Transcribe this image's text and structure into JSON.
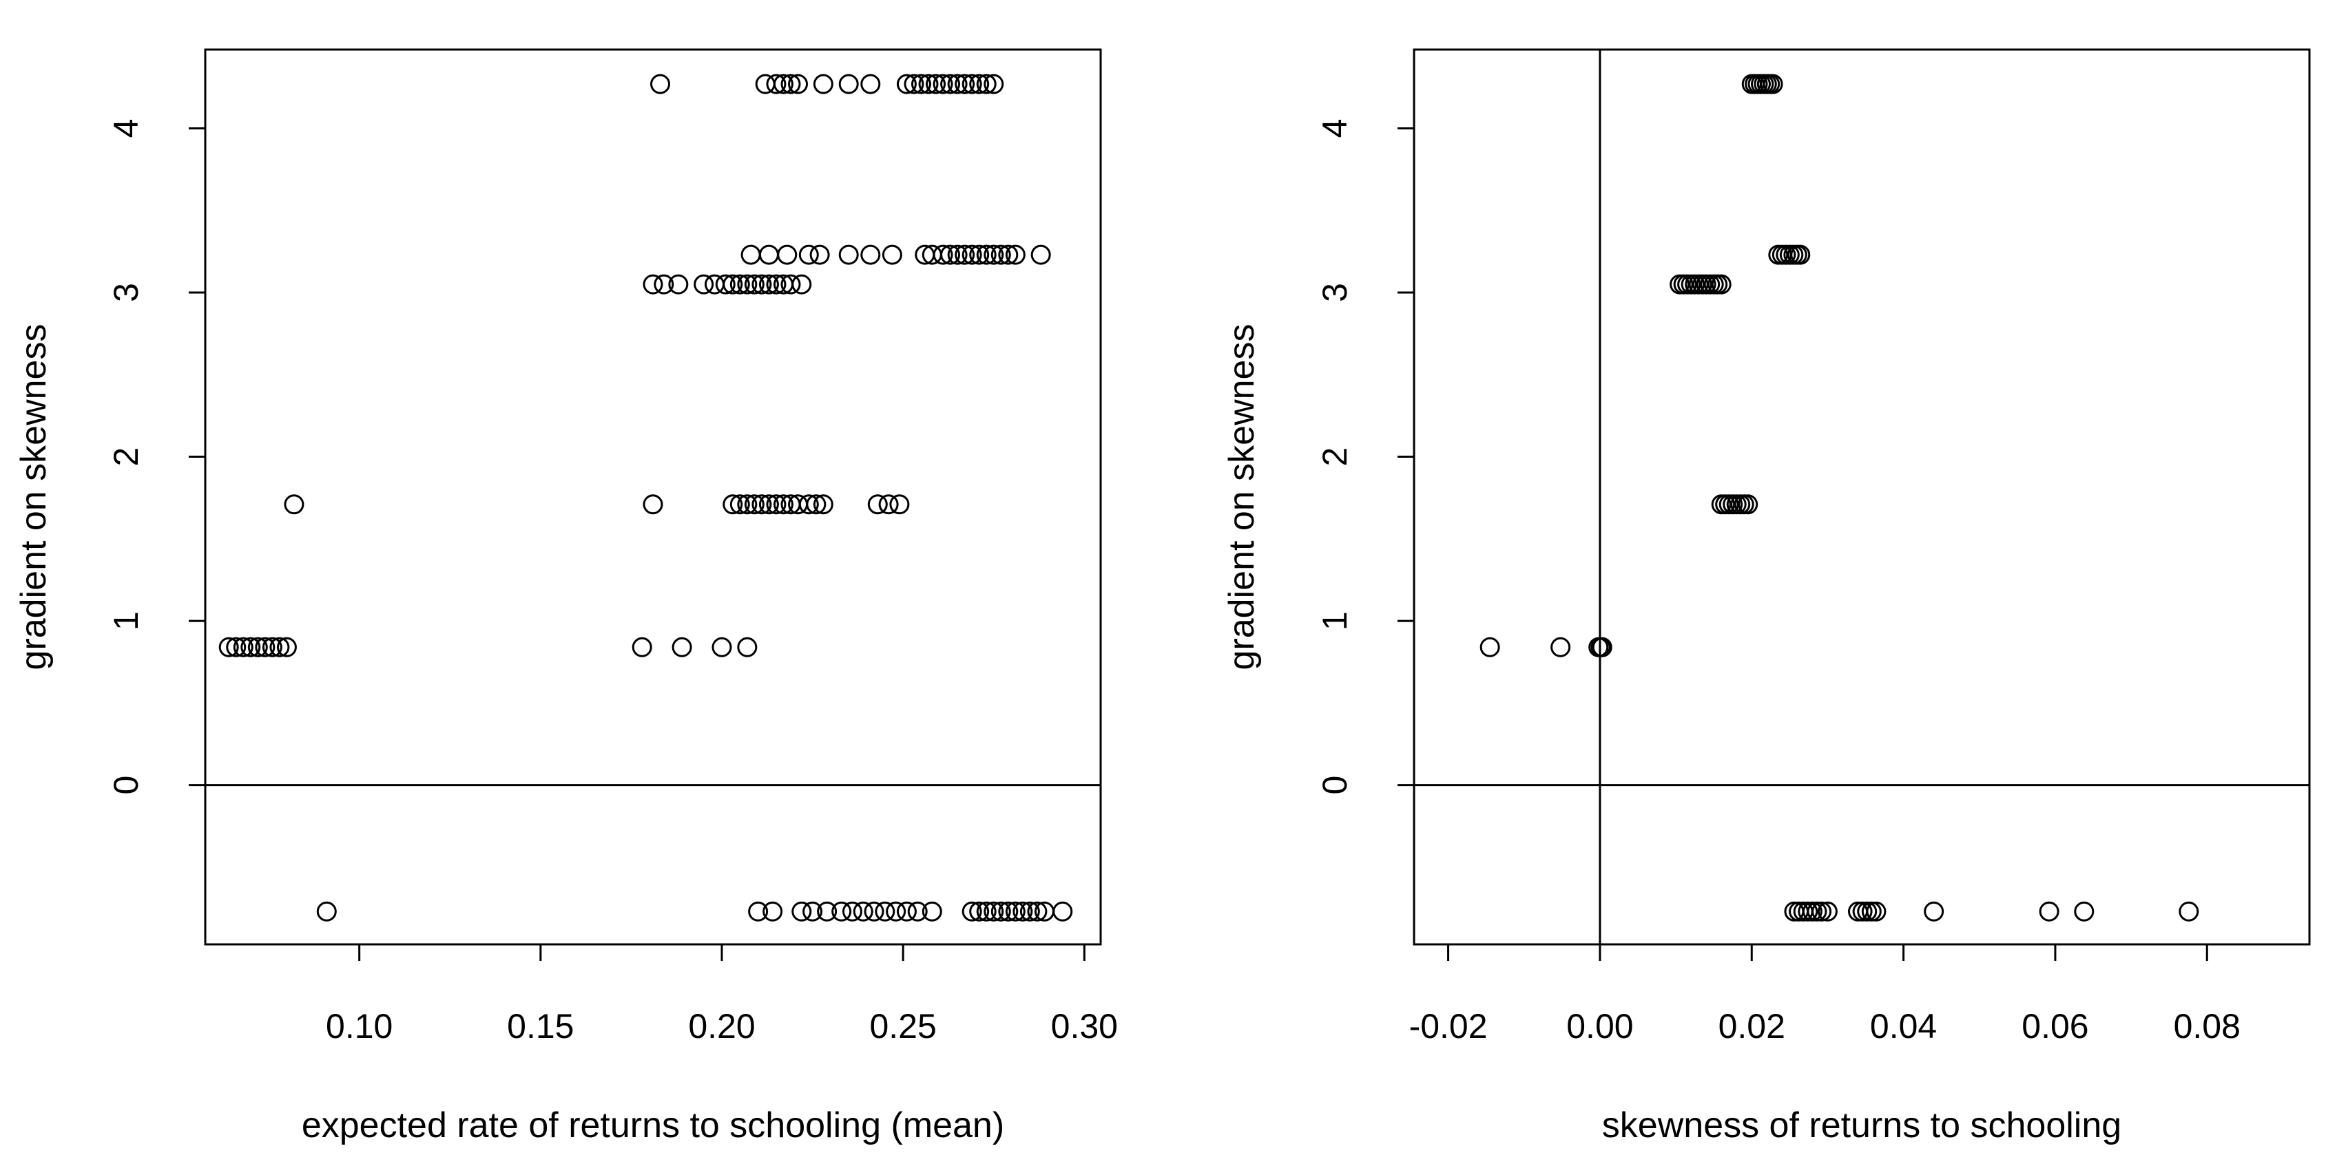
{
  "chart_data": [
    {
      "type": "scatter",
      "xlabel": "expected rate of returns to schooling (mean)",
      "ylabel": "gradient on skewness",
      "xlim": [
        0.0575,
        0.3045
      ],
      "ylim": [
        -0.97,
        4.48
      ],
      "xticks": [
        0.1,
        0.15,
        0.2,
        0.25,
        0.3
      ],
      "xtick_labels": [
        "0.10",
        "0.15",
        "0.20",
        "0.25",
        "0.30"
      ],
      "yticks": [
        0,
        1,
        2,
        3,
        4
      ],
      "ytick_labels": [
        "0",
        "1",
        "2",
        "3",
        "4"
      ],
      "hlines": [
        0
      ],
      "vlines": [],
      "grid": false,
      "marker": "open-circle",
      "rows": [
        {
          "y": 4.27,
          "x": [
            0.183,
            0.212,
            0.215,
            0.217,
            0.219,
            0.221,
            0.228,
            0.235,
            0.241,
            0.251,
            0.253,
            0.255,
            0.257,
            0.259,
            0.261,
            0.263,
            0.265,
            0.267,
            0.269,
            0.271,
            0.273,
            0.275
          ]
        },
        {
          "y": 3.23,
          "x": [
            0.208,
            0.213,
            0.218,
            0.224,
            0.227,
            0.235,
            0.241,
            0.247,
            0.256,
            0.258,
            0.261,
            0.263,
            0.265,
            0.267,
            0.269,
            0.271,
            0.273,
            0.275,
            0.277,
            0.279,
            0.281,
            0.288
          ]
        },
        {
          "y": 3.05,
          "x": [
            0.181,
            0.184,
            0.188,
            0.195,
            0.198,
            0.201,
            0.203,
            0.205,
            0.207,
            0.209,
            0.211,
            0.213,
            0.215,
            0.217,
            0.219,
            0.222
          ]
        },
        {
          "y": 1.71,
          "x": [
            0.082,
            0.181,
            0.203,
            0.205,
            0.207,
            0.209,
            0.211,
            0.213,
            0.215,
            0.217,
            0.219,
            0.221,
            0.224,
            0.226,
            0.228,
            0.243,
            0.246,
            0.249
          ]
        },
        {
          "y": 0.84,
          "x": [
            0.064,
            0.066,
            0.068,
            0.07,
            0.072,
            0.074,
            0.076,
            0.078,
            0.08,
            0.178,
            0.189,
            0.2,
            0.207
          ]
        },
        {
          "y": -0.77,
          "x": [
            0.091,
            0.21,
            0.214,
            0.222,
            0.225,
            0.229,
            0.233,
            0.236,
            0.239,
            0.242,
            0.245,
            0.248,
            0.251,
            0.254,
            0.258,
            0.269,
            0.271,
            0.273,
            0.275,
            0.277,
            0.279,
            0.281,
            0.283,
            0.285,
            0.287,
            0.289,
            0.294
          ]
        }
      ]
    },
    {
      "type": "scatter",
      "xlabel": "skewness of returns to schooling",
      "ylabel": "gradient on skewness",
      "xlim": [
        -0.0245,
        0.0935
      ],
      "ylim": [
        -0.97,
        4.48
      ],
      "xticks": [
        -0.02,
        0.0,
        0.02,
        0.04,
        0.06,
        0.08
      ],
      "xtick_labels": [
        "-0.02",
        "0.00",
        "0.02",
        "0.04",
        "0.06",
        "0.08"
      ],
      "yticks": [
        0,
        1,
        2,
        3,
        4
      ],
      "ytick_labels": [
        "0",
        "1",
        "2",
        "3",
        "4"
      ],
      "hlines": [
        0
      ],
      "vlines": [
        0
      ],
      "grid": false,
      "marker": "open-circle",
      "rows": [
        {
          "y": 4.27,
          "x": [
            0.02,
            0.0204,
            0.0208,
            0.0212,
            0.0216,
            0.022,
            0.0224,
            0.0228
          ]
        },
        {
          "y": 3.23,
          "x": [
            0.0235,
            0.024,
            0.0245,
            0.025,
            0.0255,
            0.026,
            0.0264
          ]
        },
        {
          "y": 3.05,
          "x": [
            0.0105,
            0.011,
            0.0115,
            0.012,
            0.0125,
            0.013,
            0.0135,
            0.014,
            0.0145,
            0.015,
            0.0155,
            0.016
          ]
        },
        {
          "y": 1.71,
          "x": [
            0.016,
            0.0165,
            0.017,
            0.0175,
            0.018,
            0.0185,
            0.019,
            0.0195
          ]
        },
        {
          "y": 0.84,
          "x": [
            -0.0145,
            -0.0052,
            -0.0002,
            0.0001,
            0.0003
          ]
        },
        {
          "y": -0.77,
          "x": [
            0.0256,
            0.0262,
            0.0268,
            0.0274,
            0.028,
            0.0286,
            0.0292,
            0.03,
            0.034,
            0.0346,
            0.0352,
            0.0358,
            0.0364,
            0.044,
            0.0592,
            0.0638,
            0.0776
          ]
        }
      ]
    }
  ]
}
